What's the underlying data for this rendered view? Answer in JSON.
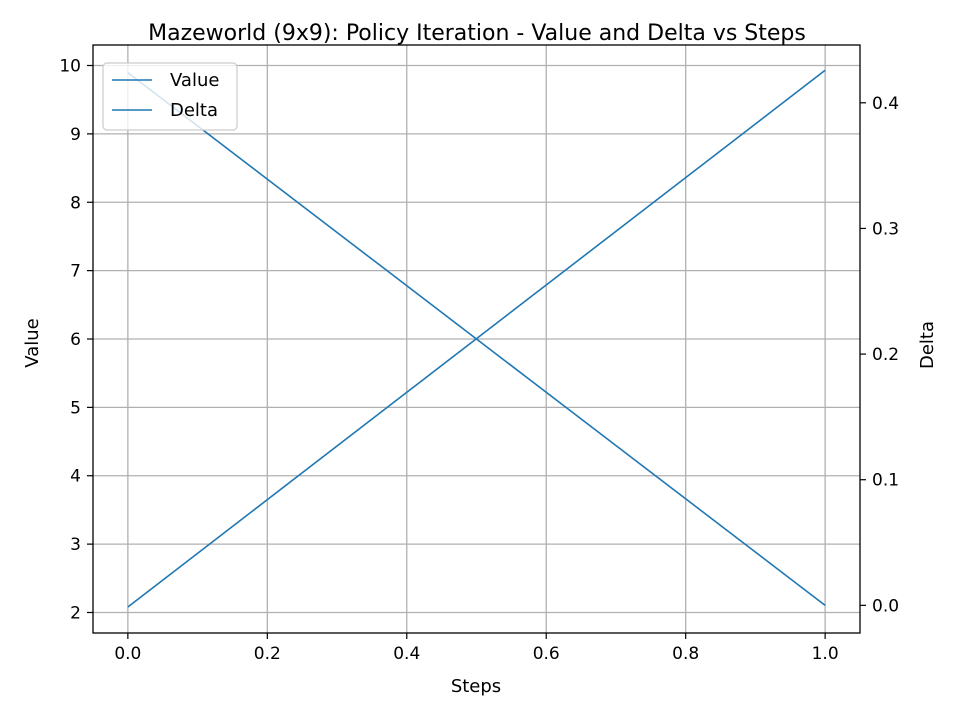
{
  "chart_data": {
    "type": "line",
    "title": "Mazeworld (9x9): Policy Iteration - Value and Delta vs Steps",
    "xlabel": "Steps",
    "ylabel": "Value",
    "y2label": "Delta",
    "xlim": [
      -0.05,
      1.05
    ],
    "ylim": [
      1.7,
      10.3
    ],
    "y2lim": [
      -0.022,
      0.446
    ],
    "xticks": [
      "0.0",
      "0.2",
      "0.4",
      "0.6",
      "0.8",
      "1.0"
    ],
    "yticks": [
      "2",
      "3",
      "4",
      "5",
      "6",
      "7",
      "8",
      "9",
      "10"
    ],
    "y2ticks": [
      "0.0",
      "0.1",
      "0.2",
      "0.3",
      "0.4"
    ],
    "grid": true,
    "legend": "upper-left",
    "color": "#1f77b4",
    "series": [
      {
        "name": "Value",
        "axis": "left",
        "x": [
          0.0,
          1.0
        ],
        "y": [
          2.08,
          9.93
        ]
      },
      {
        "name": "Delta",
        "axis": "right",
        "x": [
          0.0,
          1.0
        ],
        "y": [
          0.424,
          0.0
        ]
      }
    ]
  }
}
